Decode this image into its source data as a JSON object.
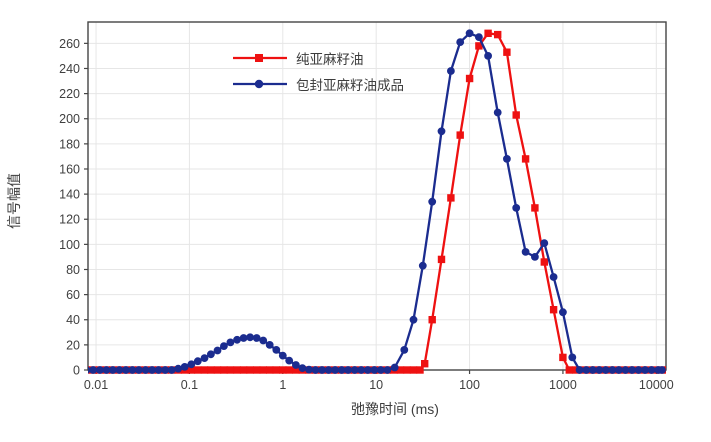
{
  "chart_data": {
    "type": "line",
    "title": "",
    "xlabel": "弛豫时间 (ms)",
    "ylabel": "信号幅值",
    "x_scale": "log",
    "xlim": [
      0.0082,
      12700
    ],
    "ylim": [
      0,
      277
    ],
    "x_ticks": [
      "0.01",
      "0.1",
      "1",
      "10",
      "100",
      "1000",
      "10000"
    ],
    "y_ticks": [
      0,
      20,
      40,
      60,
      80,
      100,
      120,
      140,
      160,
      180,
      200,
      220,
      240,
      260
    ],
    "grid": true,
    "legend_position": "upper-left-inside",
    "series": [
      {
        "name": "纯亚麻籽油",
        "color": "#ee1111",
        "marker": "square",
        "points": [
          [
            0.0079,
            0
          ],
          [
            0.0093,
            0
          ],
          [
            0.011,
            0
          ],
          [
            0.0129,
            0
          ],
          [
            0.0151,
            0
          ],
          [
            0.0178,
            0
          ],
          [
            0.0209,
            0
          ],
          [
            0.0245,
            0
          ],
          [
            0.0288,
            0
          ],
          [
            0.0339,
            0
          ],
          [
            0.0398,
            0
          ],
          [
            0.0468,
            0
          ],
          [
            0.055,
            0
          ],
          [
            0.0646,
            0
          ],
          [
            0.0759,
            0
          ],
          [
            0.0891,
            0
          ],
          [
            0.105,
            0
          ],
          [
            0.123,
            0
          ],
          [
            0.145,
            0
          ],
          [
            0.17,
            0
          ],
          [
            0.2,
            0
          ],
          [
            0.234,
            0
          ],
          [
            0.275,
            0
          ],
          [
            0.324,
            0
          ],
          [
            0.38,
            0
          ],
          [
            0.447,
            0
          ],
          [
            0.525,
            0
          ],
          [
            0.617,
            0
          ],
          [
            0.724,
            0
          ],
          [
            0.851,
            0
          ],
          [
            1.0,
            0
          ],
          [
            1.17,
            0
          ],
          [
            1.38,
            0
          ],
          [
            1.62,
            0
          ],
          [
            1.91,
            0
          ],
          [
            2.24,
            0
          ],
          [
            2.63,
            0
          ],
          [
            3.09,
            0
          ],
          [
            3.63,
            0
          ],
          [
            4.27,
            0
          ],
          [
            5.01,
            0
          ],
          [
            5.89,
            0
          ],
          [
            6.92,
            0
          ],
          [
            8.13,
            0
          ],
          [
            9.55,
            0
          ],
          [
            11.2,
            0
          ],
          [
            13.2,
            0
          ],
          [
            15.5,
            0
          ],
          [
            18.2,
            0
          ],
          [
            21.4,
            0
          ],
          [
            25.1,
            0
          ],
          [
            29.5,
            0
          ],
          [
            33.1,
            5
          ],
          [
            39.8,
            40
          ],
          [
            50.1,
            88
          ],
          [
            63.1,
            137
          ],
          [
            79.4,
            187
          ],
          [
            100,
            232
          ],
          [
            126,
            258
          ],
          [
            158,
            268
          ],
          [
            200,
            267
          ],
          [
            251,
            253
          ],
          [
            316,
            203
          ],
          [
            398,
            168
          ],
          [
            501,
            129
          ],
          [
            631,
            86
          ],
          [
            794,
            48
          ],
          [
            1000,
            10
          ],
          [
            1170,
            0
          ],
          [
            1380,
            0
          ],
          [
            1620,
            0
          ],
          [
            1910,
            0
          ],
          [
            2240,
            0
          ],
          [
            2630,
            0
          ],
          [
            3090,
            0
          ],
          [
            3630,
            0
          ],
          [
            4270,
            0
          ],
          [
            5010,
            0
          ],
          [
            5890,
            0
          ],
          [
            6920,
            0
          ],
          [
            8130,
            0
          ],
          [
            9550,
            0
          ],
          [
            11200,
            0
          ],
          [
            13200,
            0
          ]
        ]
      },
      {
        "name": "包封亚麻籽油成品",
        "color": "#1b2c8f",
        "marker": "circle",
        "points": [
          [
            0.0079,
            0
          ],
          [
            0.0093,
            0
          ],
          [
            0.011,
            0
          ],
          [
            0.0129,
            0
          ],
          [
            0.0151,
            0
          ],
          [
            0.0178,
            0
          ],
          [
            0.0209,
            0
          ],
          [
            0.0245,
            0
          ],
          [
            0.0288,
            0
          ],
          [
            0.0339,
            0
          ],
          [
            0.0398,
            0
          ],
          [
            0.0468,
            0
          ],
          [
            0.055,
            0
          ],
          [
            0.0646,
            0
          ],
          [
            0.0759,
            1
          ],
          [
            0.0891,
            2.5
          ],
          [
            0.105,
            4.5
          ],
          [
            0.123,
            7
          ],
          [
            0.145,
            9.5
          ],
          [
            0.17,
            12.5
          ],
          [
            0.2,
            15.5
          ],
          [
            0.234,
            19
          ],
          [
            0.275,
            22
          ],
          [
            0.324,
            24
          ],
          [
            0.38,
            25.5
          ],
          [
            0.447,
            26
          ],
          [
            0.525,
            25.5
          ],
          [
            0.617,
            23.5
          ],
          [
            0.724,
            20
          ],
          [
            0.851,
            16
          ],
          [
            1.0,
            11.5
          ],
          [
            1.17,
            7.5
          ],
          [
            1.38,
            4
          ],
          [
            1.62,
            1.5
          ],
          [
            1.91,
            0.3
          ],
          [
            2.24,
            0
          ],
          [
            2.63,
            0
          ],
          [
            3.09,
            0
          ],
          [
            3.63,
            0
          ],
          [
            4.27,
            0
          ],
          [
            5.01,
            0
          ],
          [
            5.89,
            0
          ],
          [
            6.92,
            0
          ],
          [
            8.13,
            0
          ],
          [
            9.55,
            0
          ],
          [
            11.2,
            0
          ],
          [
            13.2,
            0
          ],
          [
            15.8,
            2
          ],
          [
            20,
            16
          ],
          [
            25.1,
            40
          ],
          [
            31.6,
            83
          ],
          [
            39.8,
            134
          ],
          [
            50.1,
            190
          ],
          [
            63.1,
            238
          ],
          [
            79.4,
            261
          ],
          [
            100,
            268
          ],
          [
            126,
            265
          ],
          [
            158,
            250
          ],
          [
            200,
            205
          ],
          [
            251,
            168
          ],
          [
            316,
            129
          ],
          [
            398,
            94
          ],
          [
            501,
            90
          ],
          [
            631,
            101
          ],
          [
            794,
            74
          ],
          [
            1000,
            46
          ],
          [
            1260,
            10
          ],
          [
            1510,
            0
          ],
          [
            1780,
            0
          ],
          [
            2090,
            0
          ],
          [
            2450,
            0
          ],
          [
            2880,
            0
          ],
          [
            3390,
            0
          ],
          [
            3980,
            0
          ],
          [
            4680,
            0
          ],
          [
            5500,
            0
          ],
          [
            6460,
            0
          ],
          [
            7590,
            0
          ],
          [
            8910,
            0
          ],
          [
            10500,
            0
          ],
          [
            11500,
            0
          ]
        ]
      }
    ],
    "style": {
      "grid_color": "#e6e6e6",
      "border_color": "#454545",
      "tick_label_color": "#404040",
      "background": "#ffffff"
    }
  }
}
